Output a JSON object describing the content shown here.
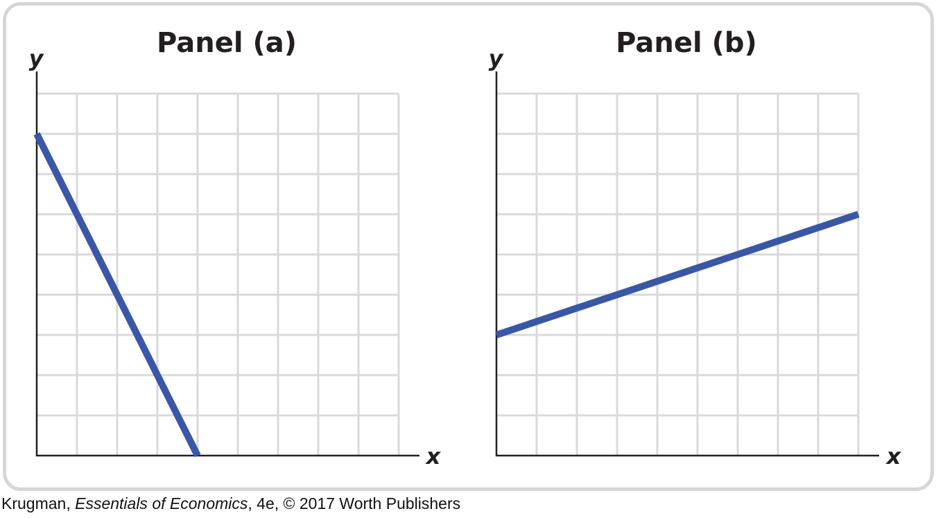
{
  "chart_data": [
    {
      "type": "line",
      "title": "Panel (a)",
      "xlabel": "x",
      "ylabel": "y",
      "xlim": [
        0,
        9
      ],
      "ylim": [
        0,
        9
      ],
      "grid": true,
      "series": [
        {
          "x": [
            0,
            4
          ],
          "y": [
            8,
            0
          ]
        }
      ]
    },
    {
      "type": "line",
      "title": "Panel (b)",
      "xlabel": "x",
      "ylabel": "y",
      "xlim": [
        0,
        9
      ],
      "ylim": [
        0,
        9
      ],
      "grid": true,
      "series": [
        {
          "x": [
            0,
            9
          ],
          "y": [
            3,
            6
          ]
        }
      ]
    }
  ],
  "colors": {
    "line": "#3a57a7",
    "grid": "#d9d9d9",
    "axis": "#231f20",
    "frame": "#d6d6d6"
  },
  "credit": {
    "author": "Krugman, ",
    "book": "Essentials of Economics",
    "rest": ", 4e, © 2017 Worth Publishers"
  }
}
